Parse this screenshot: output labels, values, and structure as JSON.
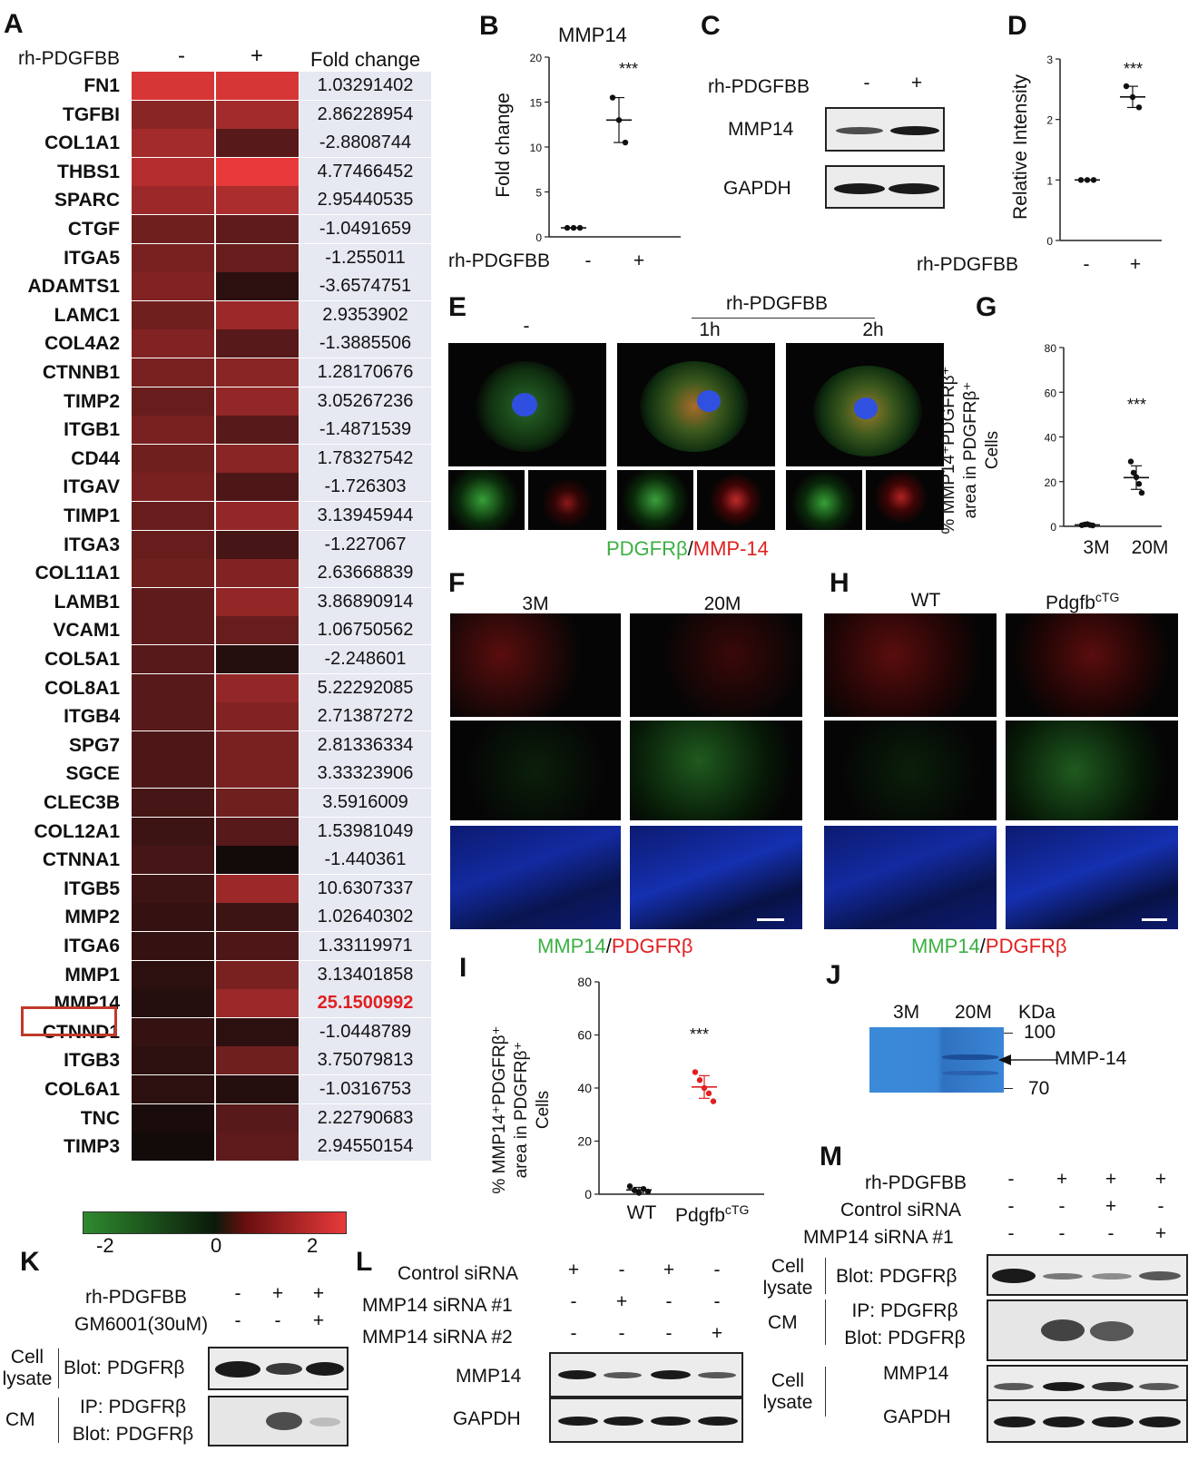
{
  "panels": {
    "A": "A",
    "B": "B",
    "C": "C",
    "D": "D",
    "E": "E",
    "F": "F",
    "G": "G",
    "H": "H",
    "I": "I",
    "J": "J",
    "K": "K",
    "L": "L",
    "M": "M"
  },
  "heatmap": {
    "treatment_label": "rh-PDGFBB",
    "col_minus": "-",
    "col_plus": "+",
    "fc_header": "Fold change",
    "genes": [
      "FN1",
      "TGFBI",
      "COL1A1",
      "THBS1",
      "SPARC",
      "CTGF",
      "ITGA5",
      "ADAMTS1",
      "LAMC1",
      "COL4A2",
      "CTNNB1",
      "TIMP2",
      "ITGB1",
      "CD44",
      "ITGAV",
      "TIMP1",
      "ITGA3",
      "COL11A1",
      "LAMB1",
      "VCAM1",
      "COL5A1",
      "COL8A1",
      "ITGB4",
      "SPG7",
      "SGCE",
      "CLEC3B",
      "COL12A1",
      "CTNNA1",
      "ITGB5",
      "MMP2",
      "ITGA6",
      "MMP1",
      "MMP14",
      "CTNND1",
      "ITGB3",
      "COL6A1",
      "TNC",
      "TIMP3"
    ],
    "fold_changes": [
      "1.03291402",
      "2.86228954",
      "-2.8808744",
      "4.77466452",
      "2.95440535",
      "-1.0491659",
      "-1.255011",
      "-3.6574751",
      "2.9353902",
      "-1.3885506",
      "1.28170676",
      "3.05267236",
      "-1.4871539",
      "1.78327542",
      "-1.726303",
      "3.13945944",
      "-1.227067",
      "2.63668839",
      "3.86890914",
      "1.06750562",
      "-2.248601",
      "5.22292085",
      "2.71387272",
      "2.81336334",
      "3.33323906",
      "3.5916009",
      "1.53981049",
      "-1.440361",
      "10.6307337",
      "1.02640302",
      "1.33119971",
      "3.13401858",
      "25.1500992",
      "-1.0448789",
      "3.75079813",
      "-1.0316753",
      "2.22790683",
      "2.94550154"
    ],
    "z_minus": [
      2.4,
      1.5,
      1.8,
      2.0,
      1.7,
      1.2,
      1.3,
      1.4,
      1.2,
      1.4,
      1.3,
      1.1,
      1.3,
      1.2,
      1.3,
      1.1,
      1.1,
      1.2,
      1.0,
      1.0,
      0.9,
      0.9,
      0.9,
      0.8,
      0.8,
      0.7,
      0.6,
      0.7,
      0.6,
      0.5,
      0.5,
      0.4,
      0.3,
      0.5,
      0.4,
      0.4,
      0.2,
      0.1
    ],
    "z_plus": [
      2.4,
      1.8,
      0.9,
      2.6,
      1.9,
      1.0,
      1.1,
      0.4,
      1.7,
      0.9,
      1.5,
      1.6,
      0.9,
      1.5,
      0.8,
      1.6,
      0.7,
      1.4,
      1.6,
      1.1,
      0.3,
      1.6,
      1.4,
      1.3,
      1.3,
      1.2,
      0.9,
      0.1,
      1.7,
      0.6,
      0.8,
      1.3,
      1.7,
      0.4,
      1.2,
      0.3,
      0.9,
      1.0
    ],
    "highlighted_gene": "MMP14",
    "scale_ticks": [
      "-2",
      "0",
      "2"
    ]
  },
  "panelB": {
    "title": "MMP14",
    "ylabel": "Fold change",
    "yticks": [
      "0",
      "5",
      "10",
      "15",
      "20"
    ],
    "xlabel": "rh-PDGFBB",
    "xticks": [
      "-",
      "+"
    ],
    "sig": "***"
  },
  "panelC": {
    "treatment": "rh-PDGFBB",
    "minus": "-",
    "plus": "+",
    "row1": "MMP14",
    "row2": "GAPDH"
  },
  "panelD": {
    "ylabel": "Relative Intensity",
    "yticks": [
      "0",
      "1",
      "2",
      "3"
    ],
    "xlabel": "rh-PDGFBB",
    "xticks": [
      "-",
      "+"
    ],
    "sig": "***"
  },
  "panelE": {
    "treatment": "rh-PDGFBB",
    "c0": "-",
    "c1": "1h",
    "c2": "2h",
    "cap_green": "PDGFRβ",
    "cap_sep": "/",
    "cap_red": "MMP-14"
  },
  "panelF": {
    "c0": "3M",
    "c1": "20M",
    "cap_green": "MMP14",
    "cap_sep": "/",
    "cap_red": "PDGFRβ"
  },
  "panelG": {
    "ylabel1": "% MMP14⁺PDGFRβ⁺",
    "ylabel2": "area in PDGFRβ⁺",
    "ylabel3": "Cells",
    "yticks": [
      "0",
      "20",
      "40",
      "60",
      "80"
    ],
    "xticks": [
      "3M",
      "20M"
    ],
    "sig": "***"
  },
  "panelH": {
    "c0": "WT",
    "c1_base": "Pdgfb",
    "c1_sup": "cTG",
    "cap_green": "MMP14",
    "cap_sep": "/",
    "cap_red": "PDGFRβ"
  },
  "panelI": {
    "ylabel1": "% MMP14⁺PDGFRβ⁺",
    "ylabel2": "area in PDGFRβ⁺",
    "ylabel3": "Cells",
    "yticks": [
      "0",
      "20",
      "40",
      "60",
      "80"
    ],
    "x0": "WT",
    "x1_base": "Pdgfb",
    "x1_sup": "cTG",
    "sig": "***"
  },
  "panelJ": {
    "c0": "3M",
    "c1": "20M",
    "unit": "KDa",
    "m100": "100",
    "m70": "70",
    "arrow_label": "MMP-14"
  },
  "panelK": {
    "r1": "rh-PDGFBB",
    "r1v": [
      "-",
      "+",
      "+"
    ],
    "r2": "GM6001(30uM)",
    "r2v": [
      "-",
      "-",
      "+"
    ],
    "lys1": "Cell",
    "lys2": "lysate",
    "blot1": "Blot: PDGFRβ",
    "cm": "CM",
    "ip": "IP: PDGFRβ",
    "blot2": "Blot: PDGFRβ"
  },
  "panelL": {
    "r1": "Control siRNA",
    "r1v": [
      "+",
      "-",
      "+",
      "-"
    ],
    "r2": "MMP14 siRNA #1",
    "r2v": [
      "-",
      "+",
      "-",
      "-"
    ],
    "r3": "MMP14 siRNA #2",
    "r3v": [
      "-",
      "-",
      "-",
      "+"
    ],
    "row1": "MMP14",
    "row2": "GAPDH"
  },
  "panelM": {
    "r1": "rh-PDGFBB",
    "r1v": [
      "-",
      "+",
      "+",
      "+"
    ],
    "r2": "Control siRNA",
    "r2v": [
      "-",
      "-",
      "+",
      "-"
    ],
    "r3": "MMP14 siRNA #1",
    "r3v": [
      "-",
      "-",
      "-",
      "+"
    ],
    "lys1": "Cell",
    "lys2": "lysate",
    "blot1": "Blot: PDGFRβ",
    "cm": "CM",
    "ip": "IP: PDGFRβ",
    "blot2": "Blot: PDGFRβ",
    "lys3": "Cell",
    "lys4": "lysate",
    "row3": "MMP14",
    "row4": "GAPDH"
  },
  "chart_data": [
    {
      "type": "scatter",
      "title": "MMP14",
      "ylabel": "Fold change",
      "xlabel": "rh-PDGFBB",
      "categories": [
        "-",
        "+"
      ],
      "ylim": [
        0,
        20
      ],
      "series": [
        {
          "values": [
            [
              1,
              1,
              1
            ],
            [
              15.5,
              13,
              10.5
            ]
          ]
        }
      ],
      "annotations": [
        "***"
      ]
    },
    {
      "type": "scatter",
      "ylabel": "Relative Intensity",
      "xlabel": "rh-PDGFBB",
      "categories": [
        "-",
        "+"
      ],
      "ylim": [
        0,
        3
      ],
      "series": [
        {
          "values": [
            [
              1,
              1,
              1
            ],
            [
              2.55,
              2.37,
              2.2
            ]
          ]
        }
      ],
      "annotations": [
        "***"
      ]
    },
    {
      "type": "scatter",
      "ylabel": "% MMP14⁺PDGFRβ⁺ area in PDGFRβ⁺ Cells",
      "categories": [
        "3M",
        "20M"
      ],
      "ylim": [
        0,
        80
      ],
      "series": [
        {
          "values": [
            [
              0.5,
              0.8,
              1.0,
              0.6,
              0.4
            ],
            [
              29,
              24,
              22,
              19,
              15
            ]
          ]
        }
      ],
      "annotations": [
        "***"
      ]
    },
    {
      "type": "scatter",
      "ylabel": "% MMP14⁺PDGFRβ⁺ area in PDGFRβ⁺ Cells",
      "categories": [
        "WT",
        "PdgfbcTG"
      ],
      "ylim": [
        0,
        80
      ],
      "series": [
        {
          "values": [
            [
              3,
              1.5,
              0.5,
              2,
              1
            ],
            [
              46,
              43,
              40,
              38,
              35
            ]
          ]
        }
      ],
      "annotations": [
        "***"
      ]
    }
  ]
}
